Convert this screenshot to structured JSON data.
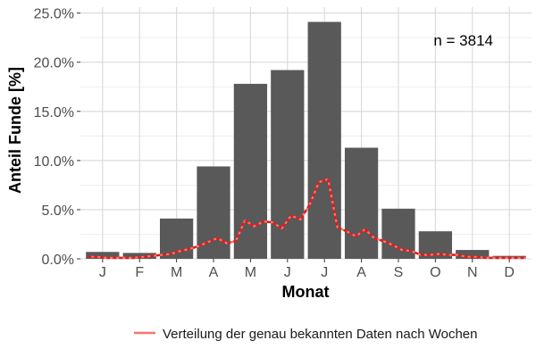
{
  "chart_data": {
    "type": "bar",
    "categories": [
      "J",
      "F",
      "M",
      "A",
      "M",
      "J",
      "J",
      "A",
      "S",
      "O",
      "N",
      "D"
    ],
    "values": [
      0.7,
      0.6,
      4.1,
      9.4,
      17.8,
      19.2,
      24.1,
      11.3,
      5.1,
      2.8,
      0.9,
      0.3
    ],
    "xlabel": "Monat",
    "ylabel": "Anteil Funde [%]",
    "ylim": [
      0,
      25.6
    ],
    "yticks": [
      0,
      5,
      10,
      15,
      20,
      25
    ],
    "ytick_labels": [
      "0.0%",
      "5.0%",
      "10.0%",
      "15.0%",
      "20.0%",
      "25.0%"
    ],
    "annotation": "n = 3814",
    "grid": true,
    "legend_position": "bottom",
    "bar_color": "#595959",
    "line_series": {
      "name": "Verteilung der genau bekannten Daten nach Wochen",
      "color": "#f8766d",
      "marker_color": "#e41a1c",
      "x": [
        0.6,
        0.85,
        1.1,
        1.35,
        1.6,
        1.85,
        2.1,
        2.35,
        2.6,
        2.85,
        3.1,
        3.35,
        3.6,
        3.85,
        4.1,
        4.35,
        4.6,
        4.85,
        5.1,
        5.35,
        5.6,
        5.85,
        6.1,
        6.35,
        6.6,
        6.85,
        7.1,
        7.35,
        7.6,
        7.85,
        8.1,
        8.35,
        8.6,
        8.85,
        9.1,
        9.35,
        9.6,
        9.85,
        10.1,
        10.35,
        10.6,
        10.85,
        11.1,
        11.35,
        11.6,
        11.85,
        12.1,
        12.35,
        12.45
      ],
      "y": [
        0.2,
        0.2,
        0.1,
        0.1,
        0.1,
        0.1,
        0.2,
        0.3,
        0.4,
        0.5,
        0.8,
        1.0,
        1.3,
        1.7,
        2.1,
        1.6,
        1.8,
        3.9,
        3.3,
        3.8,
        3.7,
        3.1,
        4.4,
        4.0,
        5.5,
        7.8,
        8.1,
        3.2,
        2.8,
        2.3,
        3.0,
        2.1,
        1.8,
        1.4,
        0.9,
        0.8,
        0.4,
        0.4,
        0.5,
        0.4,
        0.4,
        0.2,
        0.2,
        0.1,
        0.1,
        0.1,
        0.1,
        0.1,
        0.1
      ]
    }
  }
}
